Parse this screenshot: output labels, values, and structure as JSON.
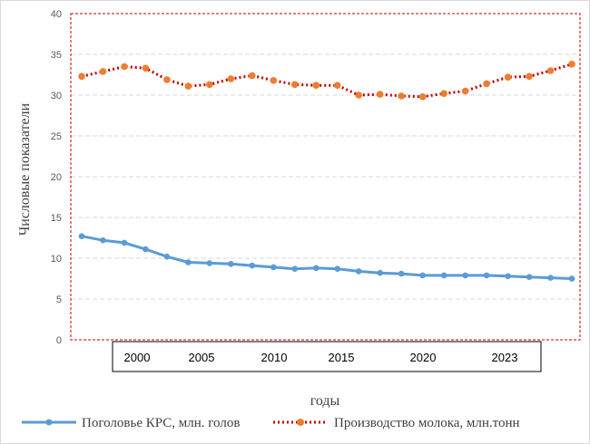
{
  "chart_data": {
    "type": "line",
    "title": "",
    "xlabel": "годы",
    "ylabel": "Числовые показатели",
    "ylim": [
      0,
      40
    ],
    "ytick_step": 5,
    "yticks": [
      "0",
      "5",
      "10",
      "15",
      "20",
      "25",
      "30",
      "35",
      "40"
    ],
    "grid": true,
    "legend_position": "bottom",
    "x_tick_labels": [
      "2000",
      "2005",
      "2010",
      "2015",
      "2020",
      "2023"
    ],
    "series": [
      {
        "name": "Поголовье КРС, млн. голов",
        "color": "#5B9BD5",
        "style": "solid",
        "values": [
          12.7,
          12.2,
          11.9,
          11.1,
          10.2,
          9.5,
          9.4,
          9.3,
          9.1,
          8.9,
          8.7,
          8.8,
          8.7,
          8.4,
          8.2,
          8.1,
          7.9,
          7.9,
          7.9,
          7.9,
          7.8,
          7.7,
          7.6,
          7.5
        ]
      },
      {
        "name": "Производство молока, млн.тонн",
        "color": "#ED7D31",
        "line_color": "#C00000",
        "style": "dotted",
        "values": [
          32.3,
          32.9,
          33.5,
          33.3,
          31.9,
          31.1,
          31.3,
          32.0,
          32.4,
          31.8,
          31.3,
          31.2,
          31.2,
          30.0,
          30.1,
          29.9,
          29.8,
          30.2,
          30.5,
          31.4,
          32.2,
          32.3,
          33.0,
          33.8
        ]
      }
    ]
  }
}
